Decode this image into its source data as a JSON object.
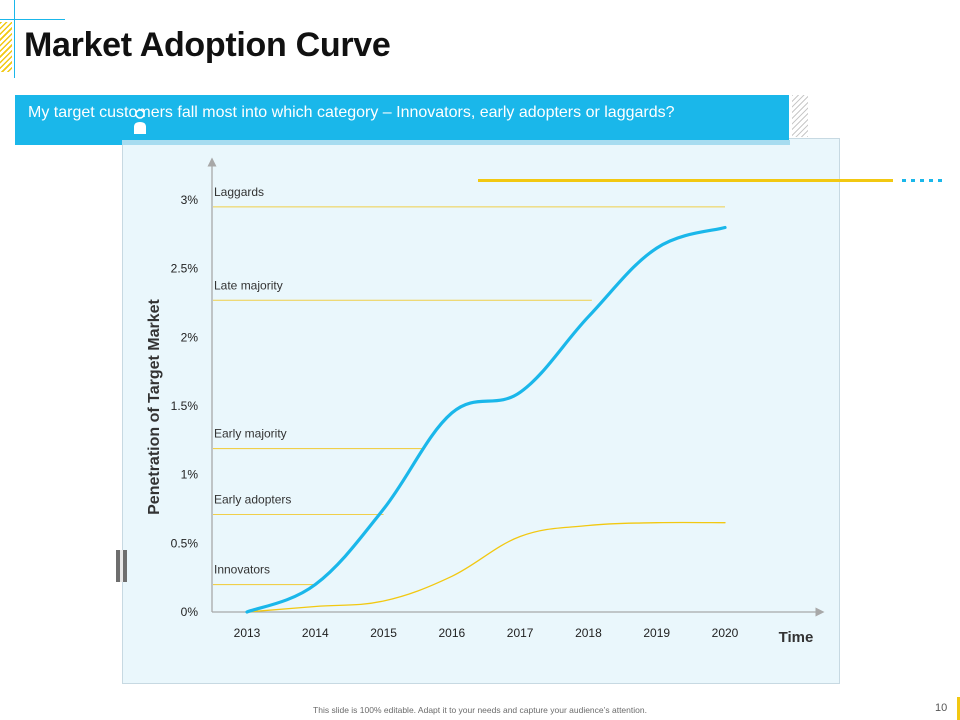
{
  "slide": {
    "title": "Market Adoption Curve",
    "banner_text": "My target customers fall most into which category – Innovators, early adopters or laggards?",
    "footer_note": "This slide is 100% editable. Adapt it to your needs and capture your audience’s attention.",
    "page_number": "10"
  },
  "colors": {
    "accent_blue": "#1ab7ea",
    "accent_yellow": "#f2c811",
    "chart_bg": "#eaf7fc",
    "category_line": "#f0cf4a",
    "axis": "#a8a8a8"
  },
  "chart_data": {
    "type": "line",
    "title": "",
    "xlabel": "Time",
    "ylabel": "Penetration of Target Market",
    "x": [
      2013,
      2014,
      2015,
      2016,
      2017,
      2018,
      2019,
      2020
    ],
    "x_tick_labels": [
      "2013",
      "2014",
      "2015",
      "2016",
      "2017",
      "2018",
      "2019",
      "2020"
    ],
    "ylim": [
      0,
      3
    ],
    "y_ticks": [
      0,
      0.5,
      1,
      1.5,
      2,
      2.5,
      3
    ],
    "y_tick_labels": [
      "0%",
      "0.5%",
      "1%",
      "1.5%",
      "2%",
      "2.5%",
      "3%"
    ],
    "grid": false,
    "series": [
      {
        "color": "#1ab7ea",
        "points": [
          [
            2013,
            0
          ],
          [
            2014,
            0.2
          ],
          [
            2015,
            0.75
          ],
          [
            2016,
            1.45
          ],
          [
            2017,
            1.6
          ],
          [
            2018,
            2.15
          ],
          [
            2019,
            2.65
          ],
          [
            2020,
            2.8
          ]
        ]
      },
      {
        "color": "#f2c811",
        "points": [
          [
            2013,
            0
          ],
          [
            2014,
            0.04
          ],
          [
            2015,
            0.08
          ],
          [
            2016,
            0.26
          ],
          [
            2017,
            0.55
          ],
          [
            2018,
            0.63
          ],
          [
            2019,
            0.65
          ],
          [
            2020,
            0.65
          ]
        ]
      }
    ],
    "categories": [
      {
        "label": "Laggards",
        "y": 2.95,
        "x_end": 2020
      },
      {
        "label": "Late majority",
        "y": 2.27,
        "x_end": 2018.05
      },
      {
        "label": "Early majority",
        "y": 1.19,
        "x_end": 2015.6
      },
      {
        "label": "Early adopters",
        "y": 0.71,
        "x_end": 2015.0
      },
      {
        "label": "Innovators",
        "y": 0.2,
        "x_end": 2014.0
      }
    ]
  }
}
